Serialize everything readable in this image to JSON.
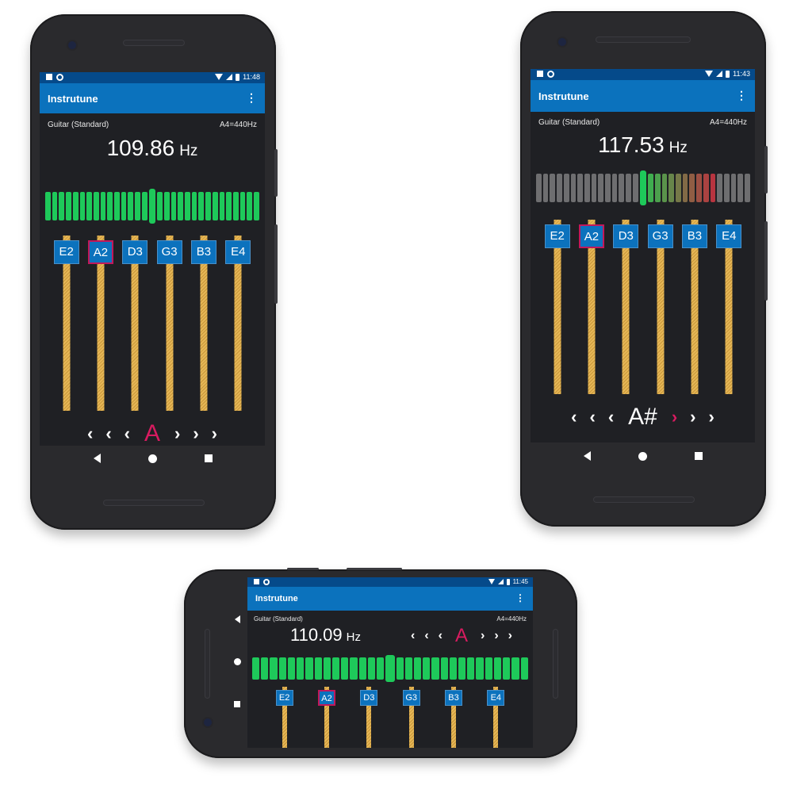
{
  "app": {
    "title": "Instrutune",
    "menu_glyph": "⋮",
    "instrument": "Guitar (Standard)",
    "reference": "A4=440Hz",
    "freq_unit": "Hz",
    "strings": [
      "E2",
      "A2",
      "D3",
      "G3",
      "B3",
      "E4"
    ],
    "arrow_left": "‹",
    "arrow_right": "›"
  },
  "colors": {
    "appbar": "#0b72bd",
    "statusbar": "#054a8a",
    "screen_bg": "#1f2024",
    "meter_green": "#1ec95a",
    "meter_grey": "#6e6e70",
    "accent": "#d81b60",
    "string_gold": "#e6b756"
  },
  "phones": [
    {
      "id": "portrait-1",
      "time": "11:48",
      "frequency": "109.86",
      "note": "A",
      "note_color": "#d81b60",
      "selected_string": 1,
      "meter": "all-green",
      "left_highlight": -1,
      "right_highlight": -1
    },
    {
      "id": "portrait-2",
      "time": "11:43",
      "frequency": "117.53",
      "note": "A#",
      "note_color": "#ffffff",
      "selected_string": 1,
      "meter": "sharp",
      "left_highlight": -1,
      "right_highlight": 0
    },
    {
      "id": "landscape",
      "time": "11:45",
      "frequency": "110.09",
      "note": "A",
      "note_color": "#d81b60",
      "selected_string": 1,
      "meter": "all-green",
      "left_highlight": -1,
      "right_highlight": -1
    }
  ]
}
